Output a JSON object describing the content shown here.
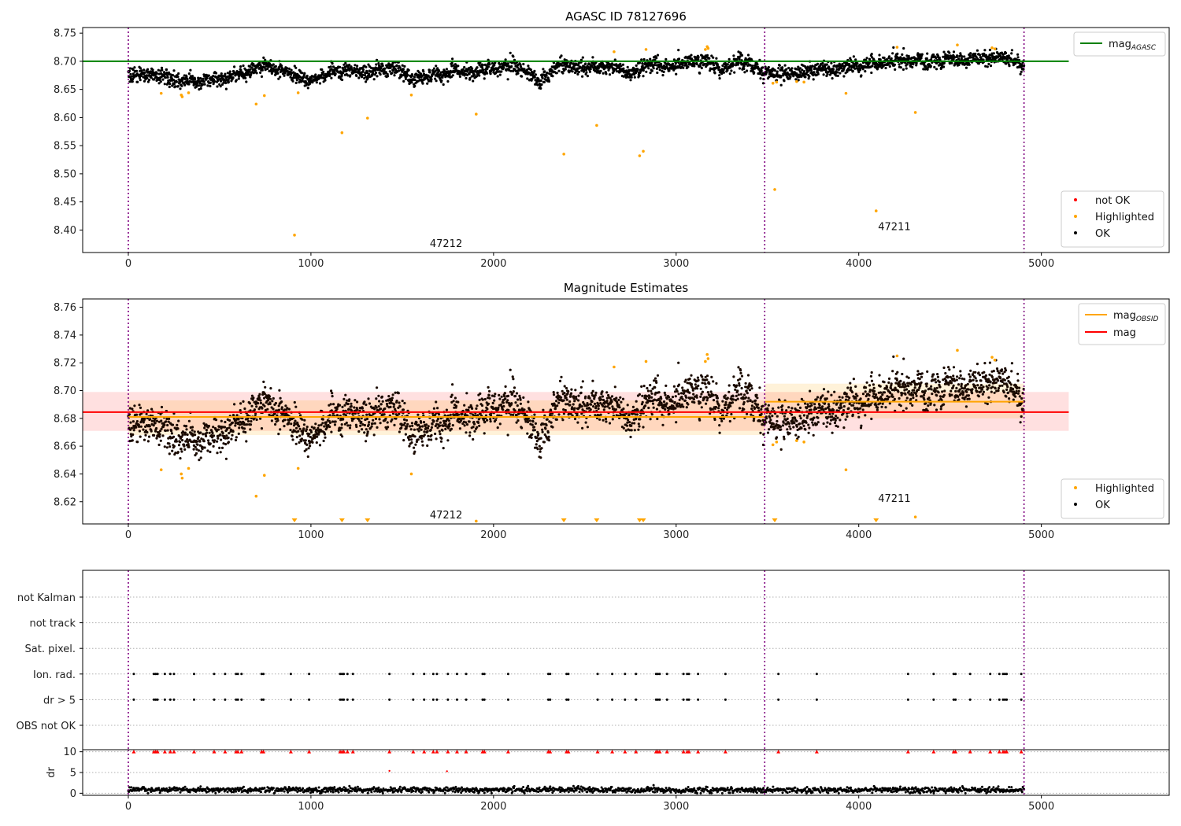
{
  "chart_data": [
    {
      "type": "scatter",
      "title": "AGASC ID 78127696",
      "xlim": [
        -250,
        5700
      ],
      "ylim": [
        8.36,
        8.76
      ],
      "xticks": [
        0,
        1000,
        2000,
        3000,
        4000,
        5000
      ],
      "yticks": [
        8.4,
        8.45,
        8.5,
        8.55,
        8.6,
        8.65,
        8.7,
        8.75
      ],
      "ytick_labels": [
        "8.40",
        "8.45",
        "8.50",
        "8.55",
        "8.60",
        "8.65",
        "8.70",
        "8.75"
      ],
      "legend_top": {
        "placement": "upper-right",
        "entries": [
          {
            "label": "mag",
            "sub": "AGASC",
            "color": "#008000"
          }
        ]
      },
      "legend_bottom": {
        "placement": "lower-right",
        "entries": [
          {
            "label": "not OK",
            "color": "#ff0000"
          },
          {
            "label": "Highlighted",
            "color": "#ffa500"
          },
          {
            "label": "OK",
            "color": "#000000"
          }
        ]
      },
      "obsid_boundaries": [
        0,
        3485,
        4905
      ],
      "hlines": [
        {
          "y": 8.7,
          "x": [
            -250,
            5150
          ],
          "color": "#008000"
        }
      ],
      "annotations": [
        {
          "text": "47212",
          "x": 1740,
          "y": 8.37
        },
        {
          "text": "47211",
          "x": 4195,
          "y": 8.4
        }
      ],
      "ok_trend": {
        "x": [
          0,
          200,
          300,
          450,
          600,
          750,
          900,
          1000,
          1150,
          1300,
          1450,
          1550,
          1700,
          1850,
          2000,
          2100,
          2200,
          2250,
          2350,
          2500,
          2650,
          2750,
          2850,
          3000,
          3150,
          3250,
          3350,
          3450,
          3550,
          3650,
          3800,
          3950,
          4100,
          4200,
          4400,
          4600,
          4750,
          4900
        ],
        "y": [
          8.68,
          8.672,
          8.662,
          8.668,
          8.675,
          8.69,
          8.68,
          8.665,
          8.685,
          8.678,
          8.69,
          8.668,
          8.68,
          8.682,
          8.685,
          8.69,
          8.678,
          8.66,
          8.693,
          8.688,
          8.69,
          8.678,
          8.695,
          8.69,
          8.702,
          8.685,
          8.7,
          8.69,
          8.678,
          8.68,
          8.686,
          8.69,
          8.695,
          8.702,
          8.7,
          8.702,
          8.71,
          8.695
        ],
        "spread": 0.014,
        "count": 3000
      },
      "highlighted_points": [
        {
          "x": 180,
          "y": 8.643
        },
        {
          "x": 290,
          "y": 8.64
        },
        {
          "x": 295,
          "y": 8.637
        },
        {
          "x": 330,
          "y": 8.644
        },
        {
          "x": 700,
          "y": 8.624
        },
        {
          "x": 745,
          "y": 8.639
        },
        {
          "x": 910,
          "y": 8.391
        },
        {
          "x": 930,
          "y": 8.644
        },
        {
          "x": 1170,
          "y": 8.573
        },
        {
          "x": 1310,
          "y": 8.599
        },
        {
          "x": 1550,
          "y": 8.64
        },
        {
          "x": 1905,
          "y": 8.606
        },
        {
          "x": 2385,
          "y": 8.535
        },
        {
          "x": 2565,
          "y": 8.586
        },
        {
          "x": 2660,
          "y": 8.717
        },
        {
          "x": 2800,
          "y": 8.532
        },
        {
          "x": 2820,
          "y": 8.54
        },
        {
          "x": 2835,
          "y": 8.721
        },
        {
          "x": 3160,
          "y": 8.721
        },
        {
          "x": 3170,
          "y": 8.726
        },
        {
          "x": 3175,
          "y": 8.723
        },
        {
          "x": 3530,
          "y": 8.661
        },
        {
          "x": 3540,
          "y": 8.472
        },
        {
          "x": 3550,
          "y": 8.663
        },
        {
          "x": 3660,
          "y": 8.664
        },
        {
          "x": 3700,
          "y": 8.663
        },
        {
          "x": 3930,
          "y": 8.643
        },
        {
          "x": 4095,
          "y": 8.434
        },
        {
          "x": 4210,
          "y": 8.725
        },
        {
          "x": 4310,
          "y": 8.609
        },
        {
          "x": 4540,
          "y": 8.729
        },
        {
          "x": 4730,
          "y": 8.724
        },
        {
          "x": 4745,
          "y": 8.722
        }
      ],
      "not_ok_points": []
    },
    {
      "type": "scatter",
      "title": "Magnitude Estimates",
      "xlim": [
        -250,
        5700
      ],
      "ylim": [
        8.604,
        8.766
      ],
      "xticks": [
        0,
        1000,
        2000,
        3000,
        4000,
        5000
      ],
      "yticks": [
        8.62,
        8.64,
        8.66,
        8.68,
        8.7,
        8.72,
        8.74,
        8.76
      ],
      "ytick_labels": [
        "8.62",
        "8.64",
        "8.66",
        "8.68",
        "8.70",
        "8.72",
        "8.74",
        "8.76"
      ],
      "legend_top": {
        "placement": "upper-right",
        "entries": [
          {
            "label": "mag",
            "sub": "OBSID",
            "color": "#ffa500"
          },
          {
            "label": "mag",
            "sub": "",
            "color": "#ff0000"
          }
        ]
      },
      "legend_bottom": {
        "placement": "lower-right",
        "entries": [
          {
            "label": "Highlighted",
            "color": "#ffa500"
          },
          {
            "label": "OK",
            "color": "#000000"
          }
        ]
      },
      "obsid_boundaries": [
        0,
        3485,
        4905
      ],
      "bands": [
        {
          "x": [
            -250,
            5150
          ],
          "y": [
            8.671,
            8.699
          ],
          "color": "#ff0000",
          "opacity": 0.12
        },
        {
          "x": [
            0,
            3485
          ],
          "y": [
            8.668,
            8.693
          ],
          "color": "#ffa500",
          "opacity": 0.15
        },
        {
          "x": [
            3485,
            4905
          ],
          "y": [
            8.68,
            8.705
          ],
          "color": "#ffa500",
          "opacity": 0.15
        }
      ],
      "hlines": [
        {
          "y": 8.6845,
          "x": [
            -250,
            5150
          ],
          "color": "#ff0000"
        },
        {
          "y": 8.681,
          "x": [
            0,
            3485
          ],
          "color": "#ffa500"
        },
        {
          "y": 8.692,
          "x": [
            3485,
            4905
          ],
          "color": "#ffa500"
        }
      ],
      "annotations": [
        {
          "text": "47212",
          "x": 1740,
          "y": 8.608
        },
        {
          "text": "47211",
          "x": 4195,
          "y": 8.62
        }
      ],
      "clipped_markers_x": [
        910,
        1170,
        1310,
        2385,
        2565,
        2800,
        2820,
        3540,
        4095
      ],
      "ok_trend_ref": 0,
      "highlighted_points_ref": 0
    }
  ],
  "flags_panel": {
    "type": "scatter",
    "xlim": [
      -250,
      5700
    ],
    "xticks": [
      0,
      1000,
      2000,
      3000,
      4000,
      5000
    ],
    "categories": [
      "not Kalman",
      "not track",
      "Sat. pixel.",
      "Ion. rad.",
      "dr > 5",
      "OBS not OK"
    ],
    "flagged_x": [
      30,
      140,
      150,
      160,
      200,
      230,
      250,
      360,
      470,
      530,
      590,
      600,
      620,
      730,
      740,
      890,
      990,
      1160,
      1170,
      1180,
      1200,
      1230,
      1430,
      1560,
      1620,
      1670,
      1690,
      1750,
      1800,
      1850,
      1940,
      1950,
      2080,
      2300,
      2310,
      2400,
      2410,
      2570,
      2650,
      2720,
      2780,
      2890,
      2900,
      2910,
      2950,
      3040,
      3060,
      3070,
      3120,
      3270,
      3560,
      3770,
      4270,
      4410,
      4520,
      4530,
      4610,
      4720,
      4770,
      4790,
      4800,
      4810,
      4890
    ],
    "obsid_boundaries": [
      0,
      3485,
      4905
    ]
  },
  "dr_panel": {
    "type": "scatter",
    "ylabel": "dr",
    "xlim": [
      -250,
      5700
    ],
    "ylim": [
      -0.5,
      10.5
    ],
    "yticks": [
      0,
      5,
      10
    ],
    "ytick_labels": [
      "0",
      "5",
      "10"
    ],
    "xticks": [
      0,
      1000,
      2000,
      3000,
      4000,
      5000
    ],
    "clip_value": 10,
    "outliers": [
      {
        "x": 1745,
        "y": 5.3
      },
      {
        "x": 1430,
        "y": 5.4
      }
    ],
    "typical_dr": 0.8,
    "obsid_boundaries": [
      0,
      3485,
      4905
    ]
  }
}
